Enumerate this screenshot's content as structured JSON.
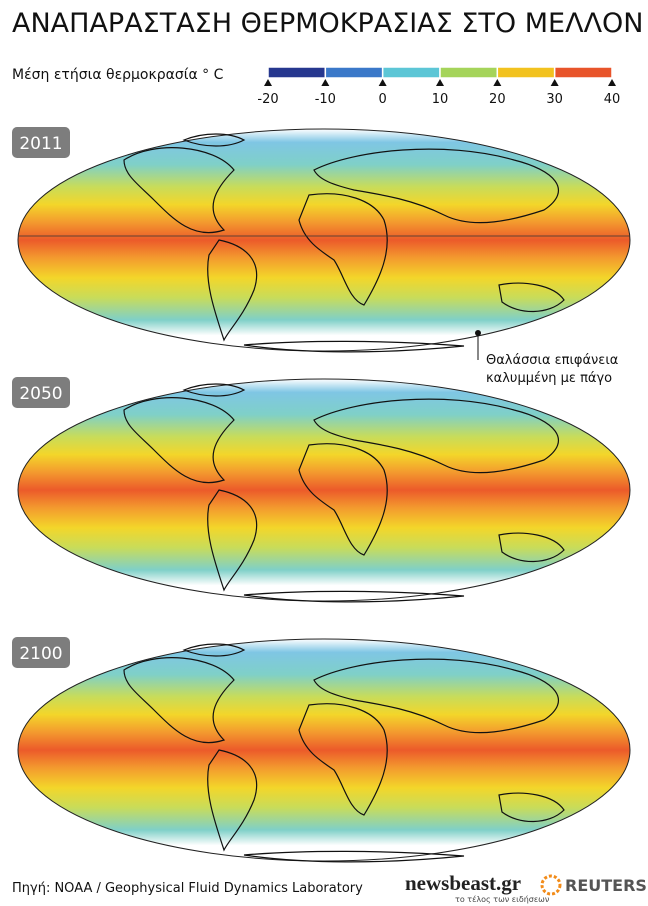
{
  "title": "ΑΝΑΠΑΡΑΣΤΑΣΗ ΘΕΡΜΟΚΡΑΣΙΑΣ ΣΤΟ ΜΕΛΛΟΝ",
  "legend": {
    "label": "Μέση ετήσια θερμοκρασία ° C",
    "ticks": [
      -20,
      -10,
      0,
      10,
      20,
      30,
      40
    ],
    "colors": [
      "#26378f",
      "#3a78c9",
      "#5cc6d6",
      "#a5d45a",
      "#f2c21f",
      "#e8542a"
    ]
  },
  "panels": [
    {
      "year": "2011"
    },
    {
      "year": "2050"
    },
    {
      "year": "2100"
    }
  ],
  "annotation": [
    "Θαλάσσια επιφάνεια",
    "καλυμμένη με πάγο"
  ],
  "source": "Πηγή: NOAA / Geophysical Fluid Dynamics Laboratory",
  "brand": {
    "name": "newsbeast.gr",
    "tagline": "το τέλος των ειδήσεων",
    "partner": "REUTERS"
  }
}
